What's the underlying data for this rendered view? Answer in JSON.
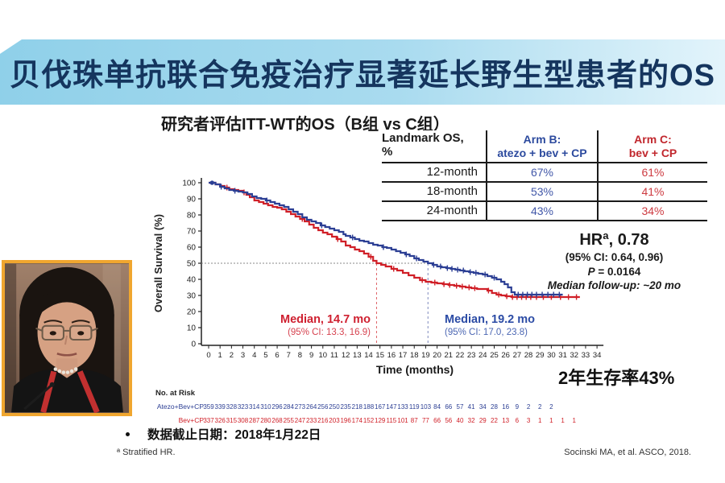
{
  "slide": {
    "banner": {
      "title": "贝伐珠单抗联合免疫治疗显著延长野生型患者的OS",
      "text_color": "#15355e"
    },
    "chart_title": "研究者评估ITT-WT的OS（B组 vs C组）",
    "landmark_table": {
      "header_col": "Landmark OS, %",
      "arms": [
        {
          "line1": "Arm B:",
          "line2": "atezo + bev + CP",
          "color": "#2c4a9e"
        },
        {
          "line1": "Arm C:",
          "line2": "bev + CP",
          "color": "#c1272d"
        }
      ],
      "rows": [
        {
          "label": "12-month",
          "arm_b": "67%",
          "arm_c": "61%"
        },
        {
          "label": "18-month",
          "arm_b": "53%",
          "arm_c": "41%"
        },
        {
          "label": "24-month",
          "arm_b": "43%",
          "arm_c": "34%"
        }
      ],
      "value_color_b": "#4157a8",
      "value_color_c": "#cd3a40"
    },
    "hr_block": {
      "title": "HRª, 0.78",
      "ci": "(95% CI: 0.64, 0.96)",
      "p_label": "P",
      "p_value": " = 0.0164",
      "followup": "Median follow-up: ~20 mo"
    },
    "median_red": {
      "title": "Median, 14.7 mo",
      "ci": "(95% CI: 13.3, 16.9)",
      "color": "#cf2030"
    },
    "median_blue": {
      "title": "Median, 19.2 mo",
      "ci": "(95% CI: 17.0, 23.8)",
      "color": "#2b4ba5"
    },
    "survival_note": "2年生存率43%",
    "data_cutoff": "数据截止日期：2018年1月22日",
    "footnote": "ª Stratified HR.",
    "citation": "Socinski MA, et al. ASCO, 2018."
  },
  "chart_data": {
    "type": "line",
    "subtype": "kaplan-meier-step",
    "title": "研究者评估ITT-WT的OS（B组 vs C组）",
    "xlabel": "Time (months)",
    "ylabel": "Overall Survival (%)",
    "xlim": [
      0,
      34
    ],
    "ylim": [
      0,
      100
    ],
    "xticks": [
      0,
      1,
      2,
      3,
      4,
      5,
      6,
      7,
      8,
      9,
      10,
      11,
      12,
      13,
      14,
      15,
      16,
      17,
      18,
      19,
      20,
      21,
      22,
      23,
      24,
      25,
      26,
      27,
      28,
      29,
      30,
      31,
      32,
      33,
      34
    ],
    "yticks": [
      0,
      10,
      20,
      30,
      40,
      50,
      60,
      70,
      80,
      90,
      100
    ],
    "grid": false,
    "risk_label": "No. at Risk",
    "reference_lines": {
      "horizontal_pct": 50,
      "median_red_x": 14.7,
      "median_blue_x": 19.2
    },
    "series": [
      {
        "name": "Atezo+Bev+CP",
        "color": "#2c3f94",
        "median_months": 19.2,
        "landmarks": {
          "12": 67,
          "18": 53,
          "24": 43
        },
        "points": [
          [
            0,
            100
          ],
          [
            0.6,
            99
          ],
          [
            1,
            97.5
          ],
          [
            1.4,
            96.5
          ],
          [
            1.8,
            95.5
          ],
          [
            2.2,
            95
          ],
          [
            2.6,
            94.5
          ],
          [
            3,
            94
          ],
          [
            3.4,
            93
          ],
          [
            3.8,
            91.5
          ],
          [
            4.2,
            90.5
          ],
          [
            4.6,
            90
          ],
          [
            5,
            89
          ],
          [
            5.4,
            88
          ],
          [
            5.8,
            87
          ],
          [
            6.2,
            86
          ],
          [
            6.6,
            85
          ],
          [
            7,
            83.5
          ],
          [
            7.4,
            82
          ],
          [
            7.8,
            80.5
          ],
          [
            8.2,
            78.5
          ],
          [
            8.6,
            77
          ],
          [
            9,
            76
          ],
          [
            9.4,
            75
          ],
          [
            9.8,
            73.5
          ],
          [
            10.2,
            72.5
          ],
          [
            10.6,
            71.5
          ],
          [
            11,
            70.5
          ],
          [
            11.4,
            69.5
          ],
          [
            11.8,
            68
          ],
          [
            12,
            67
          ],
          [
            12.4,
            66
          ],
          [
            12.8,
            65
          ],
          [
            13.2,
            64
          ],
          [
            13.6,
            63.5
          ],
          [
            14,
            62.5
          ],
          [
            14.4,
            61.5
          ],
          [
            14.8,
            61
          ],
          [
            15.2,
            60
          ],
          [
            15.6,
            59.5
          ],
          [
            16,
            58.5
          ],
          [
            16.4,
            57.5
          ],
          [
            16.8,
            56.5
          ],
          [
            17.2,
            55.5
          ],
          [
            17.6,
            54.5
          ],
          [
            18,
            53
          ],
          [
            18.4,
            52
          ],
          [
            18.8,
            51
          ],
          [
            19.2,
            50
          ],
          [
            19.6,
            49
          ],
          [
            20,
            48
          ],
          [
            20.4,
            47.5
          ],
          [
            20.8,
            47
          ],
          [
            21.2,
            46.5
          ],
          [
            21.6,
            46
          ],
          [
            22,
            45.5
          ],
          [
            22.4,
            45
          ],
          [
            22.8,
            44.5
          ],
          [
            23.2,
            44
          ],
          [
            23.6,
            43.5
          ],
          [
            24,
            43
          ],
          [
            24.4,
            42
          ],
          [
            24.8,
            41
          ],
          [
            25.2,
            40
          ],
          [
            25.6,
            38.5
          ],
          [
            25.9,
            37
          ],
          [
            26.2,
            35
          ],
          [
            26.5,
            32
          ],
          [
            26.8,
            30.5
          ],
          [
            27.2,
            30.5
          ],
          [
            31,
            30.5
          ]
        ],
        "censor_months": [
          1.1,
          2.3,
          5.1,
          9.9,
          12.6,
          15.3,
          17.3,
          18.2,
          19.7,
          20.3,
          20.9,
          21.3,
          21.8,
          22.3,
          22.9,
          23.4,
          24.2,
          25.0,
          27.1,
          27.5,
          27.9,
          28.3,
          28.7,
          29.2,
          29.7,
          30.2,
          30.7
        ],
        "risk_counts": [
          359,
          339,
          328,
          323,
          314,
          310,
          296,
          284,
          273,
          264,
          256,
          250,
          235,
          218,
          188,
          167,
          147,
          133,
          119,
          103,
          84,
          66,
          57,
          41,
          34,
          28,
          16,
          9,
          2,
          2,
          2
        ]
      },
      {
        "name": "Bev+CP",
        "color": "#d01f27",
        "median_months": 14.7,
        "landmarks": {
          "12": 61,
          "18": 41,
          "24": 34
        },
        "points": [
          [
            0,
            100
          ],
          [
            0.6,
            99
          ],
          [
            1,
            98
          ],
          [
            1.4,
            97
          ],
          [
            1.8,
            96
          ],
          [
            2.2,
            95.5
          ],
          [
            2.6,
            95
          ],
          [
            3,
            94
          ],
          [
            3.3,
            92.5
          ],
          [
            3.6,
            91
          ],
          [
            4,
            89
          ],
          [
            4.4,
            88
          ],
          [
            4.8,
            87
          ],
          [
            5.2,
            86
          ],
          [
            5.6,
            85
          ],
          [
            6,
            84.5
          ],
          [
            6.4,
            83.5
          ],
          [
            6.8,
            82
          ],
          [
            7.2,
            80.5
          ],
          [
            7.6,
            79
          ],
          [
            8,
            77.5
          ],
          [
            8.4,
            76
          ],
          [
            8.8,
            74
          ],
          [
            9.2,
            72
          ],
          [
            9.6,
            70.5
          ],
          [
            10,
            69
          ],
          [
            10.4,
            68
          ],
          [
            10.8,
            66.5
          ],
          [
            11.2,
            65
          ],
          [
            11.6,
            63.5
          ],
          [
            12,
            61
          ],
          [
            12.4,
            60
          ],
          [
            12.8,
            58.5
          ],
          [
            13.2,
            57.5
          ],
          [
            13.6,
            56
          ],
          [
            14,
            54
          ],
          [
            14.4,
            51.5
          ],
          [
            14.7,
            50
          ],
          [
            15.1,
            49
          ],
          [
            15.5,
            48
          ],
          [
            16,
            46.5
          ],
          [
            16.5,
            45.5
          ],
          [
            17,
            44
          ],
          [
            17.5,
            42.5
          ],
          [
            18,
            41
          ],
          [
            18.5,
            39.5
          ],
          [
            19,
            38.5
          ],
          [
            19.5,
            38
          ],
          [
            20,
            37.5
          ],
          [
            20.5,
            37
          ],
          [
            21,
            36.5
          ],
          [
            21.5,
            36
          ],
          [
            22,
            35.5
          ],
          [
            22.5,
            35
          ],
          [
            23,
            34.5
          ],
          [
            23.5,
            34
          ],
          [
            24,
            34
          ],
          [
            24.4,
            33
          ],
          [
            24.8,
            31.5
          ],
          [
            25.2,
            30.5
          ],
          [
            25.6,
            30
          ],
          [
            26,
            29.5
          ],
          [
            26.5,
            29
          ],
          [
            32.5,
            29
          ]
        ],
        "censor_months": [
          1.6,
          3.1,
          8.2,
          11.3,
          14.2,
          16.2,
          18.7,
          19.8,
          20.6,
          21.1,
          21.7,
          22.2,
          22.8,
          23.3,
          24.5,
          25.4,
          26.1,
          26.6,
          27.0,
          27.4,
          27.8,
          28.2,
          28.7,
          29.3,
          30.0,
          30.8,
          31.5,
          32.2
        ],
        "risk_counts": [
          337,
          326,
          315,
          308,
          287,
          280,
          268,
          255,
          247,
          233,
          216,
          203,
          196,
          174,
          152,
          129,
          115,
          101,
          87,
          77,
          66,
          56,
          40,
          32,
          29,
          22,
          13,
          6,
          3,
          1,
          1,
          1,
          1
        ]
      }
    ]
  }
}
